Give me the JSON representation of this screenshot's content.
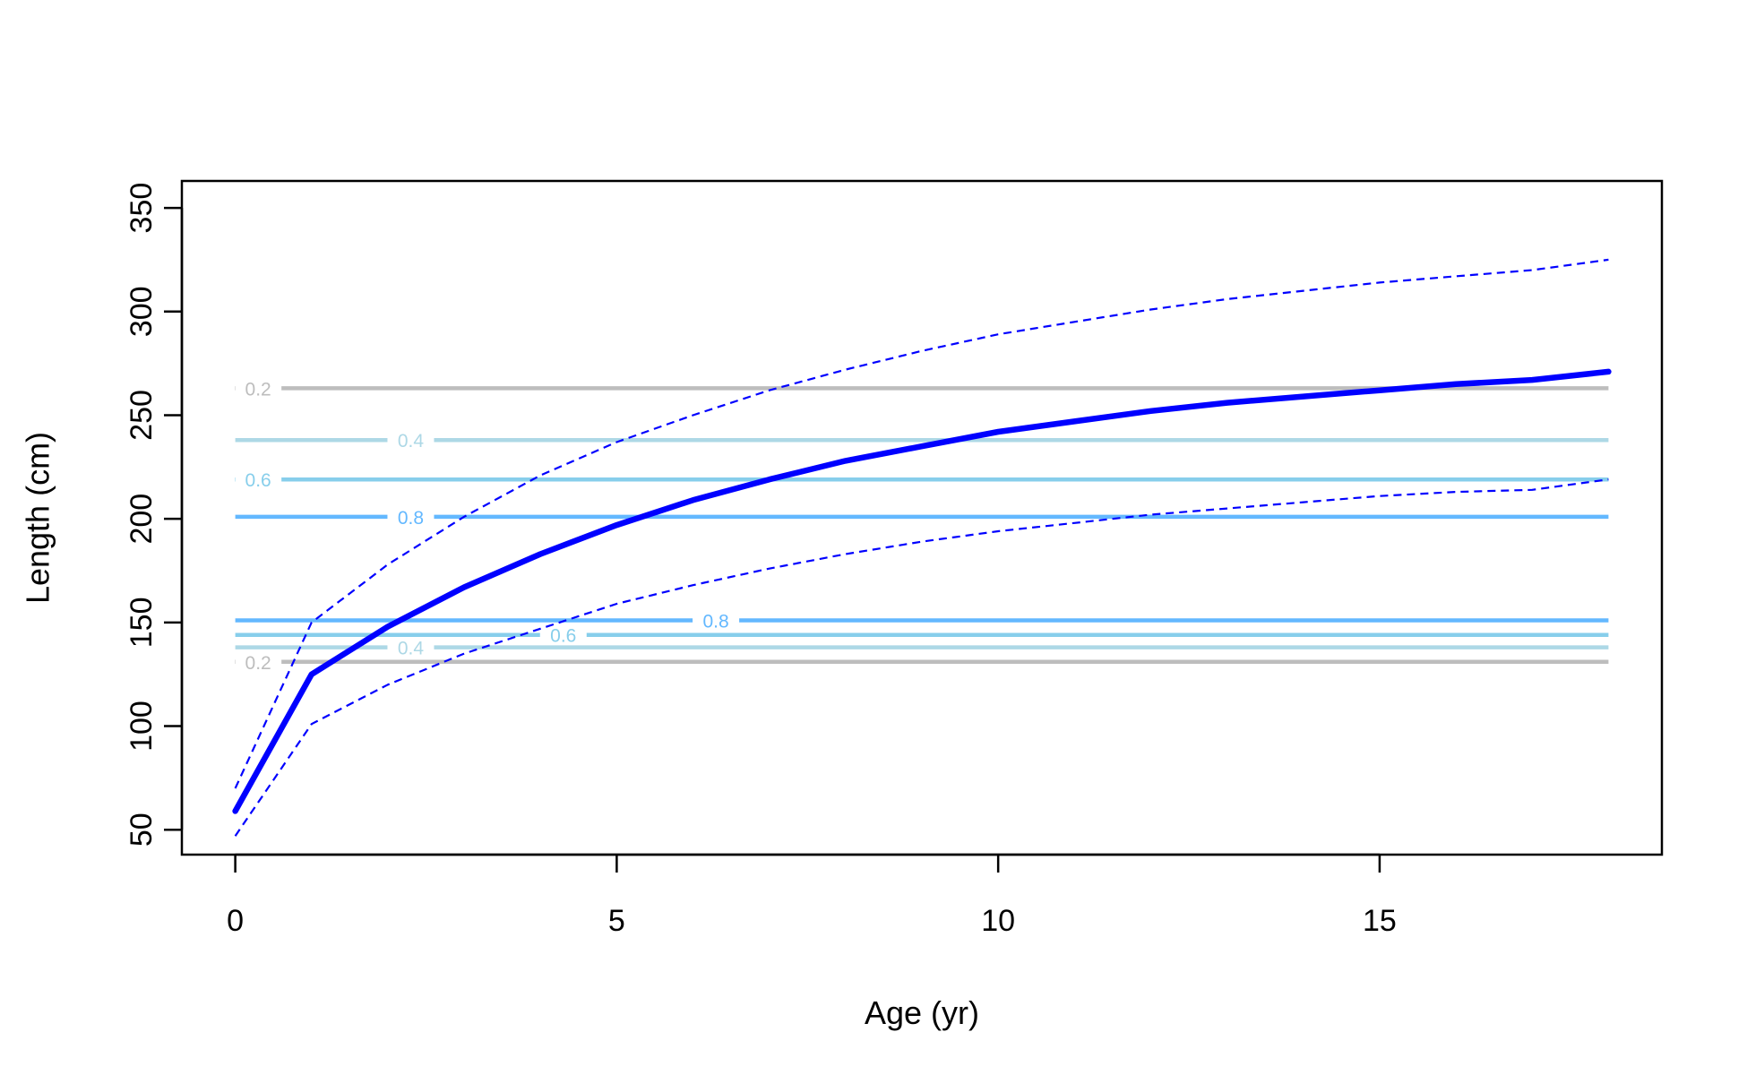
{
  "chart_data": {
    "type": "line",
    "xlabel": "Age (yr)",
    "ylabel": "Length (cm)",
    "xlim": [
      -0.7,
      18.7
    ],
    "ylim": [
      38,
      363
    ],
    "xticks": [
      0,
      5,
      10,
      15
    ],
    "yticks": [
      50,
      100,
      150,
      200,
      250,
      300,
      350
    ],
    "grid": false,
    "x": [
      0,
      1,
      2,
      3,
      4,
      5,
      6,
      7,
      8,
      9,
      10,
      11,
      12,
      13,
      14,
      15,
      16,
      17,
      18
    ],
    "series": [
      {
        "role": "mean",
        "style": "solid",
        "color": "#0000ff",
        "values": [
          59,
          125,
          148,
          167,
          183,
          197,
          209,
          219,
          228,
          235,
          242,
          247,
          252,
          256,
          259,
          262,
          265,
          267,
          271
        ]
      },
      {
        "role": "upper",
        "style": "dashed",
        "color": "#0000ff",
        "values": [
          70,
          150,
          178,
          201,
          221,
          237,
          250,
          262,
          272,
          281,
          289,
          295,
          301,
          306,
          310,
          314,
          317,
          320,
          325
        ]
      },
      {
        "role": "lower",
        "style": "dashed",
        "color": "#0000ff",
        "values": [
          47,
          101,
          120,
          135,
          147,
          159,
          168,
          176,
          183,
          189,
          194,
          198,
          202,
          205,
          208,
          211,
          213,
          214,
          219
        ]
      }
    ],
    "contours": [
      {
        "label": "0.2",
        "y": 263,
        "color": "#bdbdbd",
        "label_x": 0.3
      },
      {
        "label": "0.4",
        "y": 238,
        "color": "#add8e6",
        "label_x": 2.3
      },
      {
        "label": "0.6",
        "y": 219,
        "color": "#87ceeb",
        "label_x": 0.3
      },
      {
        "label": "0.8",
        "y": 201,
        "color": "#63b8ff",
        "label_x": 2.3
      },
      {
        "label": "0.8",
        "y": 151,
        "color": "#63b8ff",
        "label_x": 6.3
      },
      {
        "label": "0.6",
        "y": 144,
        "color": "#87ceeb",
        "label_x": 4.3
      },
      {
        "label": "0.4",
        "y": 138,
        "color": "#add8e6",
        "label_x": 2.3
      },
      {
        "label": "0.2",
        "y": 131,
        "color": "#bdbdbd",
        "label_x": 0.3
      }
    ]
  }
}
